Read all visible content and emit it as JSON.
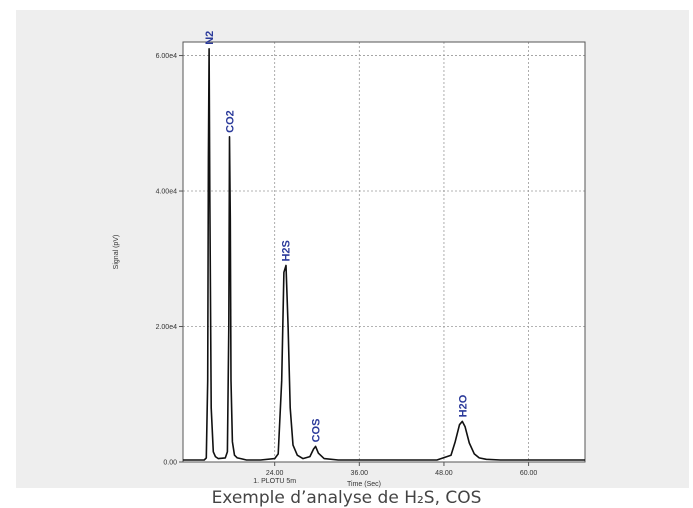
{
  "caption": "Exemple d’analyse de H₂S, COS",
  "chart_data": {
    "type": "line",
    "title": "",
    "xlabel": "Time (Sec)",
    "xlabel_secondary": "1. PLOTU 5m",
    "ylabel": "Signal (pV)",
    "xlim": [
      11,
      68
    ],
    "ylim": [
      0,
      62000
    ],
    "x_ticks": [
      24.0,
      36.0,
      48.0,
      60.0
    ],
    "x_tick_labels": [
      "24.00",
      "36.00",
      "48.00",
      "60.00"
    ],
    "y_ticks": [
      0,
      20000,
      40000,
      60000
    ],
    "y_tick_labels": [
      "0.00",
      "2.00e4",
      "4.00e4",
      "6.00e4"
    ],
    "grid": true,
    "series": [
      {
        "line_color": "#111111",
        "x": [
          11,
          14.0,
          14.3,
          14.5,
          14.6,
          14.7,
          14.8,
          15.0,
          15.3,
          15.6,
          16.0,
          17.0,
          17.3,
          17.5,
          17.6,
          17.7,
          17.8,
          18.0,
          18.3,
          18.7,
          19.2,
          20,
          22,
          24,
          24.5,
          25.0,
          25.3,
          25.6,
          25.9,
          26.2,
          26.6,
          27.2,
          28,
          29,
          29.5,
          29.8,
          30.2,
          31,
          33,
          36,
          40,
          44,
          47,
          49.0,
          49.6,
          50.2,
          50.6,
          51.0,
          51.6,
          52.3,
          53,
          54,
          56,
          60,
          65,
          68
        ],
        "y": [
          300,
          300,
          600,
          12000,
          45000,
          61000,
          40000,
          8000,
          1500,
          800,
          500,
          600,
          1500,
          20000,
          48000,
          36000,
          12000,
          3000,
          1000,
          600,
          500,
          300,
          300,
          500,
          1200,
          12000,
          28000,
          29000,
          20000,
          8000,
          2500,
          1000,
          500,
          800,
          1900,
          2300,
          1300,
          500,
          300,
          300,
          300,
          300,
          300,
          1000,
          3000,
          5500,
          6000,
          5200,
          2800,
          1200,
          600,
          400,
          300,
          300,
          300,
          300
        ]
      }
    ],
    "peaks": [
      {
        "label": "N2",
        "x": 14.7,
        "y": 61000
      },
      {
        "label": "CO2",
        "x": 17.6,
        "y": 48000
      },
      {
        "label": "H2S",
        "x": 25.5,
        "y": 29000
      },
      {
        "label": "COS",
        "x": 29.8,
        "y": 2300
      },
      {
        "label": "H2O",
        "x": 50.6,
        "y": 6000
      }
    ]
  }
}
